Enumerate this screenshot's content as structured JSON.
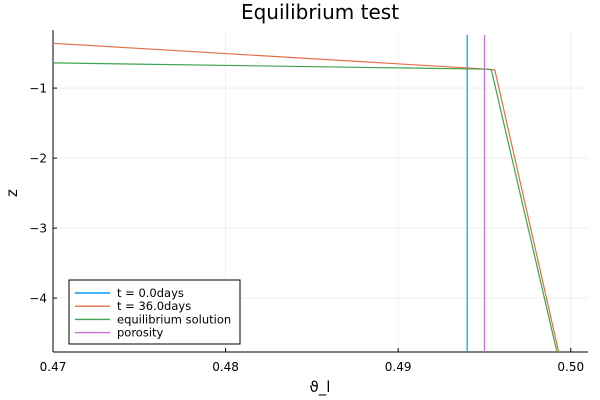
{
  "chart_data": {
    "type": "line",
    "title": "Equilibrium test",
    "xlabel": "ϑ_l",
    "ylabel": "z",
    "xlim": [
      0.47,
      0.501
    ],
    "ylim": [
      -4.77,
      -0.17
    ],
    "xticks": [
      0.47,
      0.48,
      0.49,
      0.5
    ],
    "xtick_labels": [
      "0.47",
      "0.48",
      "0.49",
      "0.50"
    ],
    "yticks": [
      -1,
      -2,
      -3,
      -4
    ],
    "ytick_labels": [
      "−1",
      "−2",
      "−3",
      "−4"
    ],
    "grid": true,
    "legend_position": "bottom-left",
    "series": [
      {
        "name": "t = 0.0days",
        "color": "#009AFA",
        "x": [
          0.494,
          0.494
        ],
        "y": [
          -0.24,
          -4.77
        ]
      },
      {
        "name": "t = 36.0days",
        "color": "#E26F46",
        "x": [
          0.47,
          0.4952,
          0.4956,
          0.4993
        ],
        "y": [
          -0.36,
          -0.73,
          -0.74,
          -4.77
        ]
      },
      {
        "name": "equilibrium solution",
        "color": "#3EA44E",
        "x": [
          0.47,
          0.4952,
          0.4954,
          0.4992
        ],
        "y": [
          -0.64,
          -0.73,
          -0.74,
          -4.77
        ]
      },
      {
        "name": "porosity",
        "color": "#C271D2",
        "x": [
          0.495,
          0.495
        ],
        "y": [
          -0.24,
          -4.77
        ]
      }
    ]
  }
}
